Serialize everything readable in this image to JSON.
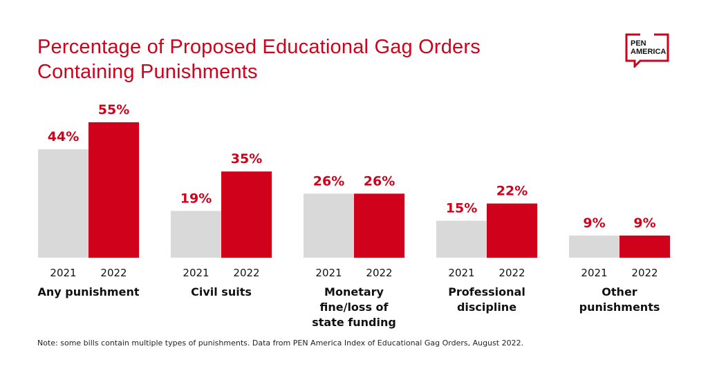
{
  "logo_text": "PEN AMERICA",
  "colors": {
    "2021": "#d9d9d9",
    "2022": "#d0021b",
    "label_red": "#d0021b"
  },
  "note": "Note: some bills contain multiple types of punishments. Data from PEN America Index of Educational Gag Orders, August 2022.",
  "chart_data": {
    "type": "bar",
    "title": [
      "Percentage of Proposed Educational Gag Orders",
      "Containing Punishments"
    ],
    "categories": [
      [
        "Any punishment"
      ],
      [
        "Civil suits"
      ],
      [
        "Monetary",
        "fine/loss of",
        "state funding"
      ],
      [
        "Professional",
        "discipline"
      ],
      [
        "Other",
        "punishments"
      ]
    ],
    "series": [
      {
        "name": "2021",
        "values": [
          44,
          19,
          26,
          15,
          9
        ]
      },
      {
        "name": "2022",
        "values": [
          55,
          35,
          26,
          22,
          9
        ]
      }
    ],
    "value_suffix": "%",
    "ylim": [
      0,
      60
    ],
    "grid": false,
    "legend": "none"
  }
}
